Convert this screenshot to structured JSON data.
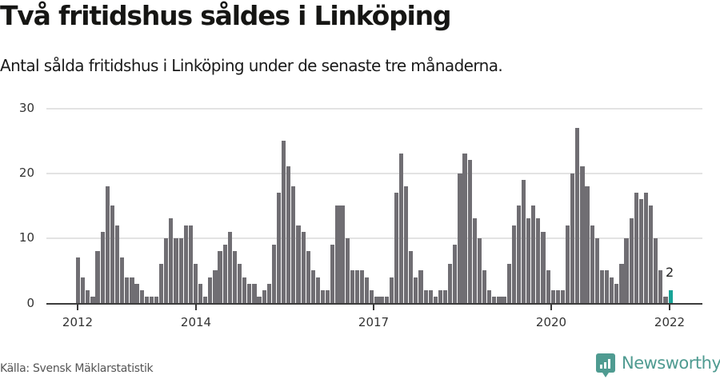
{
  "header": {
    "title": "Två fritidshus såldes i Linköping",
    "subtitle": "Antal sålda fritidshus i Linköping under de senaste tre månaderna."
  },
  "footer": {
    "source": "Källa: Svensk Mäklarstatistik",
    "brand": "Newsworthy"
  },
  "colors": {
    "bar": "#706e73",
    "highlight": "#17a397",
    "brand": "#4f9b91"
  },
  "chart_data": {
    "type": "bar",
    "title": "Två fritidshus såldes i Linköping",
    "subtitle": "Antal sålda fritidshus i Linköping under de senaste tre månaderna.",
    "xlabel": "",
    "ylabel": "",
    "ylim": [
      0,
      30
    ],
    "yticks": [
      "0",
      "10",
      "20",
      "30"
    ],
    "xticks": [
      "2012",
      "2014",
      "2017",
      "2020",
      "2022"
    ],
    "grid": true,
    "legend": null,
    "annotation": {
      "label": "2",
      "target": "last bar"
    },
    "values": [
      7,
      4,
      2,
      1,
      8,
      11,
      18,
      15,
      12,
      7,
      4,
      4,
      3,
      2,
      1,
      1,
      1,
      6,
      10,
      13,
      10,
      10,
      12,
      12,
      6,
      3,
      1,
      4,
      5,
      8,
      9,
      11,
      8,
      6,
      4,
      3,
      3,
      1,
      2,
      3,
      9,
      17,
      25,
      21,
      18,
      12,
      11,
      8,
      5,
      4,
      2,
      2,
      9,
      15,
      15,
      10,
      5,
      5,
      5,
      4,
      2,
      1,
      1,
      1,
      4,
      17,
      23,
      18,
      8,
      4,
      5,
      2,
      2,
      1,
      2,
      2,
      6,
      9,
      20,
      23,
      22,
      13,
      10,
      5,
      2,
      1,
      1,
      1,
      6,
      12,
      15,
      19,
      13,
      15,
      13,
      11,
      5,
      2,
      2,
      2,
      12,
      20,
      27,
      21,
      18,
      12,
      10,
      5,
      5,
      4,
      3,
      6,
      10,
      13,
      17,
      16,
      17,
      15,
      10,
      5,
      1,
      2
    ]
  }
}
